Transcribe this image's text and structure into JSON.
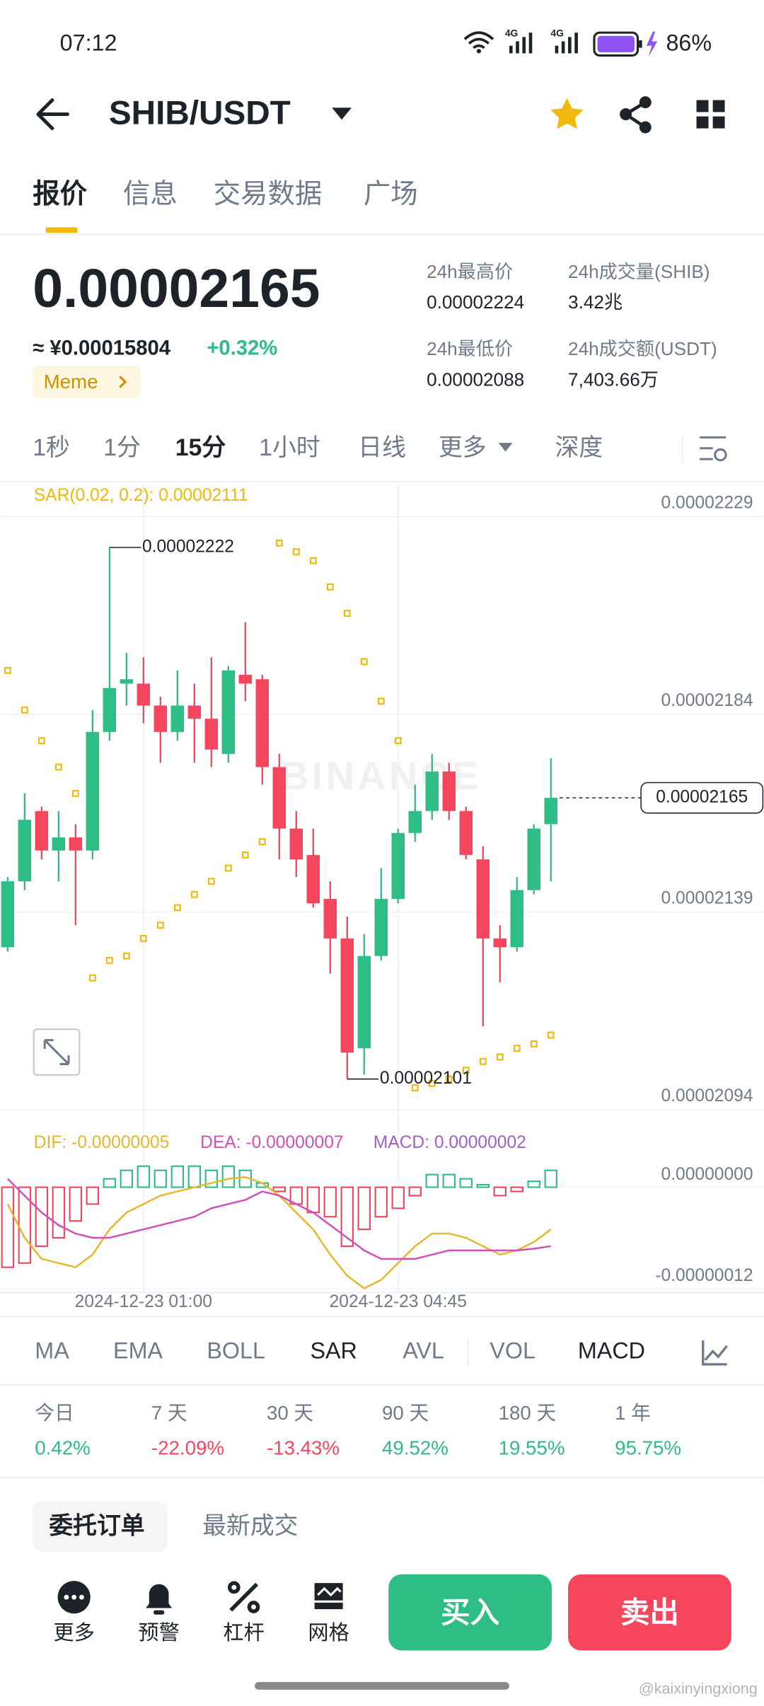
{
  "status_bar": {
    "time": "07:12",
    "battery": "86%"
  },
  "header": {
    "pair": "SHIB/USDT"
  },
  "tabs": [
    "报价",
    "信息",
    "交易数据",
    "广场"
  ],
  "ticker": {
    "price": "0.00002165",
    "cny": "≈ ¥0.00015804",
    "change": "+0.32%",
    "tag": "Meme",
    "stats": [
      {
        "label": "24h最高价",
        "value": "0.00002224"
      },
      {
        "label": "24h成交量(SHIB)",
        "value": "3.42兆"
      },
      {
        "label": "24h最低价",
        "value": "0.00002088"
      },
      {
        "label": "24h成交额(USDT)",
        "value": "7,403.66万"
      }
    ]
  },
  "intervals": [
    "1秒",
    "1分",
    "15分",
    "1小时",
    "日线",
    "更多",
    "深度"
  ],
  "chart_data": {
    "type": "candlestick",
    "sar_label": "SAR(0.02, 0.2): 0.00002111",
    "watermark": "BINANCE",
    "high_label": "0.00002222",
    "low_label": "0.00002101",
    "last_label": "0.00002165",
    "colors": {
      "up": "#2ebd85",
      "down": "#f6465d",
      "sar": "#f0b90b"
    },
    "categories": [
      null,
      null,
      null,
      null,
      null,
      null,
      null,
      null,
      "2024-12-23 01:00",
      null,
      null,
      null,
      null,
      null,
      null,
      null,
      null,
      null,
      null,
      null,
      null,
      null,
      null,
      "2024-12-23 04:45",
      null,
      null,
      null,
      null,
      null,
      null,
      null,
      null,
      null
    ],
    "open": [
      2.131e-05,
      2.146e-05,
      2.162e-05,
      2.153e-05,
      2.156e-05,
      2.153e-05,
      2.18e-05,
      2.191e-05,
      2.191e-05,
      2.186e-05,
      2.18e-05,
      2.186e-05,
      2.183e-05,
      2.175e-05,
      2.193e-05,
      2.192e-05,
      2.172e-05,
      2.158e-05,
      2.152e-05,
      2.142e-05,
      2.133e-05,
      2.108e-05,
      2.129e-05,
      2.142e-05,
      2.157e-05,
      2.162e-05,
      2.171e-05,
      2.162e-05,
      2.151e-05,
      2.133e-05,
      2.131e-05,
      2.144e-05,
      2.159e-05
    ],
    "high": [
      2.147e-05,
      2.166e-05,
      2.163e-05,
      2.162e-05,
      2.159e-05,
      2.185e-05,
      2.222e-05,
      2.198e-05,
      2.197e-05,
      2.188e-05,
      2.194e-05,
      2.191e-05,
      2.197e-05,
      2.195e-05,
      2.205e-05,
      2.193e-05,
      2.175e-05,
      2.162e-05,
      2.158e-05,
      2.146e-05,
      2.138e-05,
      2.134e-05,
      2.149e-05,
      2.158e-05,
      2.168e-05,
      2.175e-05,
      2.173e-05,
      2.163e-05,
      2.154e-05,
      2.136e-05,
      2.147e-05,
      2.159e-05,
      2.174e-05
    ],
    "low": [
      2.13e-05,
      2.144e-05,
      2.151e-05,
      2.146e-05,
      2.136e-05,
      2.151e-05,
      2.178e-05,
      2.186e-05,
      2.182e-05,
      2.173e-05,
      2.178e-05,
      2.173e-05,
      2.172e-05,
      2.173e-05,
      2.187e-05,
      2.168e-05,
      2.151e-05,
      2.147e-05,
      2.14e-05,
      2.125e-05,
      2.101e-05,
      2.102e-05,
      2.128e-05,
      2.141e-05,
      2.155e-05,
      2.16e-05,
      2.16e-05,
      2.151e-05,
      2.113e-05,
      2.123e-05,
      2.13e-05,
      2.143e-05,
      2.146e-05
    ],
    "close": [
      2.146e-05,
      2.16e-05,
      2.153e-05,
      2.156e-05,
      2.153e-05,
      2.18e-05,
      2.19e-05,
      2.192e-05,
      2.186e-05,
      2.18e-05,
      2.186e-05,
      2.183e-05,
      2.176e-05,
      2.194e-05,
      2.191e-05,
      2.172e-05,
      2.158e-05,
      2.151e-05,
      2.141e-05,
      2.133e-05,
      2.107e-05,
      2.129e-05,
      2.142e-05,
      2.157e-05,
      2.162e-05,
      2.171e-05,
      2.162e-05,
      2.152e-05,
      2.133e-05,
      2.131e-05,
      2.144e-05,
      2.158e-05,
      2.165e-05
    ],
    "sar": [
      2.194e-05,
      2.185e-05,
      2.178e-05,
      2.172e-05,
      2.166e-05,
      2.124e-05,
      2.128e-05,
      2.129e-05,
      2.133e-05,
      2.136e-05,
      2.14e-05,
      2.143e-05,
      2.146e-05,
      2.149e-05,
      2.152e-05,
      2.155e-05,
      2.223e-05,
      2.221e-05,
      2.219e-05,
      2.213e-05,
      2.207e-05,
      2.196e-05,
      2.187e-05,
      2.178e-05,
      2.099e-05,
      2.1e-05,
      2.101e-05,
      2.103e-05,
      2.105e-05,
      2.106e-05,
      2.108e-05,
      2.109e-05,
      2.111e-05
    ],
    "ylim": [
      2.094e-05,
      2.2364e-05
    ],
    "yticks": [
      2.094e-05,
      2.139e-05,
      2.184e-05,
      2.229e-05
    ],
    "grid": true,
    "macd": {
      "hist_name": "MACD: 0.00000002",
      "hist_color": "#a25fc9",
      "hist": [
        -9.5e-08,
        -9e-08,
        -7e-08,
        -6e-08,
        -4e-08,
        -2e-08,
        1e-08,
        2e-08,
        2.5e-08,
        2e-08,
        2.5e-08,
        2.5e-08,
        2e-08,
        2.5e-08,
        2e-08,
        5e-09,
        -5e-09,
        -2e-08,
        -3e-08,
        -3.5e-08,
        -7e-08,
        -5e-08,
        -3.5e-08,
        -2.5e-08,
        -1e-08,
        1.5e-08,
        1.5e-08,
        1e-08,
        3e-09,
        -1e-08,
        -5e-09,
        7e-09,
        2e-08
      ],
      "series": [
        {
          "name": "DIF: -0.00000005",
          "color": "#e6b62c",
          "values": [
            -2e-08,
            -6e-08,
            -8.5e-08,
            -9e-08,
            -9.5e-08,
            -8e-08,
            -5e-08,
            -3e-08,
            -2e-08,
            -1e-08,
            -5e-09,
            0,
            5e-09,
            1e-08,
            1.2e-08,
            5e-09,
            -1e-08,
            -3e-08,
            -5e-08,
            -8e-08,
            -1.05e-07,
            -1.2e-07,
            -1.1e-07,
            -9e-08,
            -7e-08,
            -5.5e-08,
            -5.5e-08,
            -6e-08,
            -7e-08,
            -8e-08,
            -7.5e-08,
            -6.5e-08,
            -5e-08
          ]
        },
        {
          "name": "DEA: -0.00000007",
          "color": "#d14fb6",
          "values": [
            1e-08,
            -1e-08,
            -3e-08,
            -4.5e-08,
            -5.5e-08,
            -6e-08,
            -6e-08,
            -5.5e-08,
            -5e-08,
            -4.5e-08,
            -4e-08,
            -3.5e-08,
            -2.5e-08,
            -2e-08,
            -1.5e-08,
            -5e-09,
            -1e-08,
            -2e-08,
            -3e-08,
            -4.5e-08,
            -6e-08,
            -7.5e-08,
            -8.5e-08,
            -8.5e-08,
            -8.5e-08,
            -8e-08,
            -7.5e-08,
            -7.5e-08,
            -7.5e-08,
            -7.5e-08,
            -7.5e-08,
            -7.3e-08,
            -7e-08
          ]
        }
      ],
      "ylim": [
        -1.25e-07,
        7.9e-08
      ],
      "yticks": [
        {
          "value": 0,
          "label": "0.00000000"
        },
        {
          "value": -1.2e-07,
          "label": "-0.00000012"
        }
      ]
    }
  },
  "indicators": [
    "MA",
    "EMA",
    "BOLL",
    "SAR",
    "AVL",
    "VOL",
    "MACD"
  ],
  "performance": [
    {
      "label": "今日",
      "value": "0.42%"
    },
    {
      "label": "7 天",
      "value": "-22.09%"
    },
    {
      "label": "30 天",
      "value": "-13.43%"
    },
    {
      "label": "90 天",
      "value": "49.52%"
    },
    {
      "label": "180 天",
      "value": "19.55%"
    },
    {
      "label": "1 年",
      "value": "95.75%"
    }
  ],
  "order_tabs": [
    "委托订单",
    "最新成交"
  ],
  "bottom_nav": [
    "更多",
    "预警",
    "杠杆",
    "网格"
  ],
  "buy": "买入",
  "sell": "卖出",
  "watermark": "@kaixinyingxiong"
}
